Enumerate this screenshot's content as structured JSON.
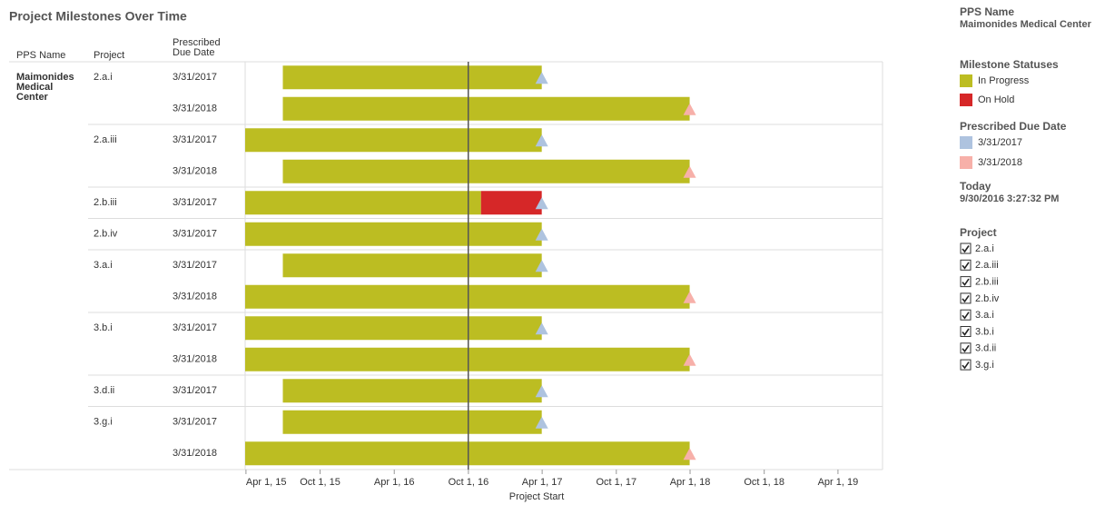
{
  "chart_data": {
    "type": "gantt",
    "title": "Project Milestones Over Time",
    "columns": [
      "PPS Name",
      "Project",
      "Prescribed Due Date"
    ],
    "pps_name": "Maimonides Medical Center",
    "x_label": "Project Start",
    "xlim": [
      "2015-03-30",
      "2019-07-20"
    ],
    "xticks": [
      {
        "value": "2015-04-01",
        "label": "Apr 1, 15"
      },
      {
        "value": "2015-10-01",
        "label": "Oct 1, 15"
      },
      {
        "value": "2016-04-01",
        "label": "Apr 1, 16"
      },
      {
        "value": "2016-10-01",
        "label": "Oct 1, 16"
      },
      {
        "value": "2017-04-01",
        "label": "Apr 1, 17"
      },
      {
        "value": "2017-10-01",
        "label": "Oct 1, 17"
      },
      {
        "value": "2018-04-01",
        "label": "Apr 1, 18"
      },
      {
        "value": "2018-10-01",
        "label": "Oct 1, 18"
      },
      {
        "value": "2019-04-01",
        "label": "Apr 1, 19"
      }
    ],
    "statuses": [
      {
        "name": "In Progress",
        "color": "#bcbd22"
      },
      {
        "name": "On Hold",
        "color": "#d62728"
      }
    ],
    "due_dates": [
      {
        "name": "3/31/2017",
        "color": "#aec3df"
      },
      {
        "name": "3/31/2018",
        "color": "#f7b0a9"
      }
    ],
    "legend_titles": {
      "pps": "PPS Name",
      "status": "Milestone Statuses",
      "due": "Prescribed Due Date",
      "today": "Today",
      "project": "Project"
    },
    "today": {
      "value": "2016-09-30T15:27:32",
      "label": "9/30/2016 3:27:32 PM"
    },
    "groups": [
      {
        "project": "2.a.i",
        "rows": [
          {
            "due_date": "3/31/2017",
            "segments": [
              {
                "status": "In Progress",
                "start": "2015-07-01",
                "end": "2017-03-31"
              }
            ]
          },
          {
            "due_date": "3/31/2018",
            "segments": [
              {
                "status": "In Progress",
                "start": "2015-07-01",
                "end": "2018-03-31"
              }
            ]
          }
        ]
      },
      {
        "project": "2.a.iii",
        "rows": [
          {
            "due_date": "3/31/2017",
            "segments": [
              {
                "status": "In Progress",
                "start": "2015-03-30",
                "end": "2017-03-31"
              }
            ]
          },
          {
            "due_date": "3/31/2018",
            "segments": [
              {
                "status": "In Progress",
                "start": "2015-07-01",
                "end": "2018-03-31"
              }
            ]
          }
        ]
      },
      {
        "project": "2.b.iii",
        "rows": [
          {
            "due_date": "3/31/2017",
            "segments": [
              {
                "status": "In Progress",
                "start": "2015-03-30",
                "end": "2016-11-01"
              },
              {
                "status": "On Hold",
                "start": "2016-11-01",
                "end": "2017-03-31"
              }
            ]
          }
        ]
      },
      {
        "project": "2.b.iv",
        "rows": [
          {
            "due_date": "3/31/2017",
            "segments": [
              {
                "status": "In Progress",
                "start": "2015-03-30",
                "end": "2017-03-31"
              }
            ]
          }
        ]
      },
      {
        "project": "3.a.i",
        "rows": [
          {
            "due_date": "3/31/2017",
            "segments": [
              {
                "status": "In Progress",
                "start": "2015-07-01",
                "end": "2017-03-31"
              }
            ]
          },
          {
            "due_date": "3/31/2018",
            "segments": [
              {
                "status": "In Progress",
                "start": "2015-03-30",
                "end": "2018-03-31"
              }
            ]
          }
        ]
      },
      {
        "project": "3.b.i",
        "rows": [
          {
            "due_date": "3/31/2017",
            "segments": [
              {
                "status": "In Progress",
                "start": "2015-03-30",
                "end": "2017-03-31"
              }
            ]
          },
          {
            "due_date": "3/31/2018",
            "segments": [
              {
                "status": "In Progress",
                "start": "2015-03-30",
                "end": "2018-03-31"
              }
            ]
          }
        ]
      },
      {
        "project": "3.d.ii",
        "rows": [
          {
            "due_date": "3/31/2017",
            "segments": [
              {
                "status": "In Progress",
                "start": "2015-07-01",
                "end": "2017-03-31"
              }
            ]
          }
        ]
      },
      {
        "project": "3.g.i",
        "rows": [
          {
            "due_date": "3/31/2017",
            "segments": [
              {
                "status": "In Progress",
                "start": "2015-07-01",
                "end": "2017-03-31"
              }
            ]
          },
          {
            "due_date": "3/31/2018",
            "segments": [
              {
                "status": "In Progress",
                "start": "2015-03-30",
                "end": "2018-03-31"
              }
            ]
          }
        ]
      }
    ]
  }
}
